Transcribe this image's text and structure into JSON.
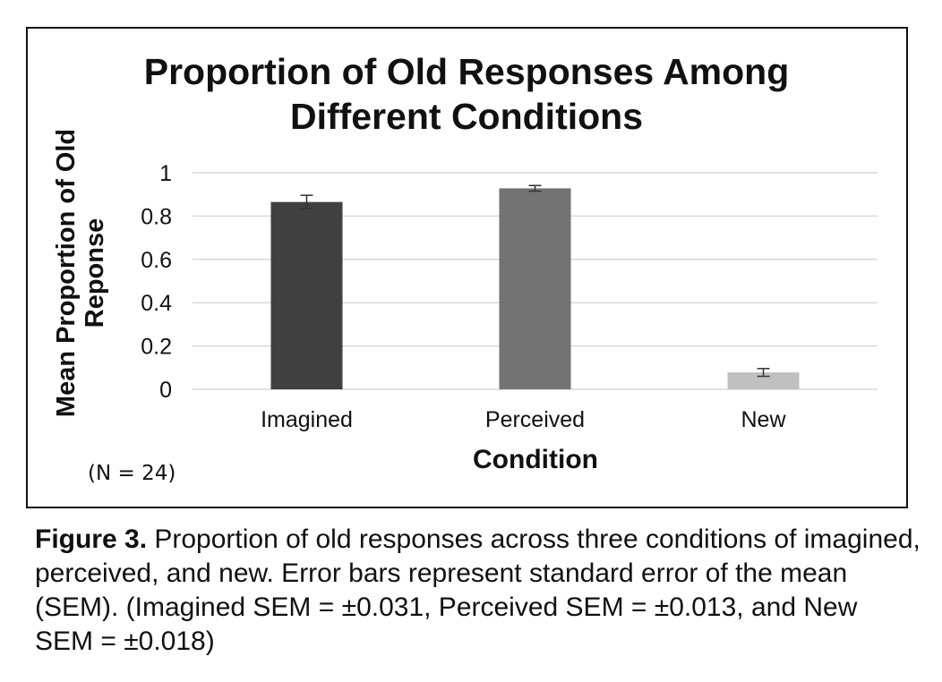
{
  "chart_data": {
    "type": "bar",
    "title_lines": [
      "Proportion of Old Responses Among",
      "Different Conditions"
    ],
    "ylabel_lines": [
      "Mean Proportion of Old",
      "Reponse"
    ],
    "xlabel": "Condition",
    "categories": [
      "Imagined",
      "Perceived",
      "New"
    ],
    "values": [
      0.865,
      0.928,
      0.078
    ],
    "errors": [
      0.031,
      0.013,
      0.018
    ],
    "bar_colors": [
      "#404040",
      "#737373",
      "#c0c0c0"
    ],
    "ylim": [
      0,
      1
    ],
    "yticks": [
      0,
      0.2,
      0.4,
      0.6,
      0.8,
      1
    ],
    "ytick_labels": [
      "0",
      "0.2",
      "0.4",
      "0.6",
      "0.8",
      "1"
    ],
    "grid": true,
    "note": "(N = 24)"
  },
  "caption": {
    "label": "Figure 3.",
    "text": " Proportion of old responses across three conditions of imagined, perceived, and new. Error bars represent standard error of the mean (SEM). (Imagined SEM = ±0.031, Perceived SEM = ±0.013, and New SEM = ±0.018)"
  }
}
